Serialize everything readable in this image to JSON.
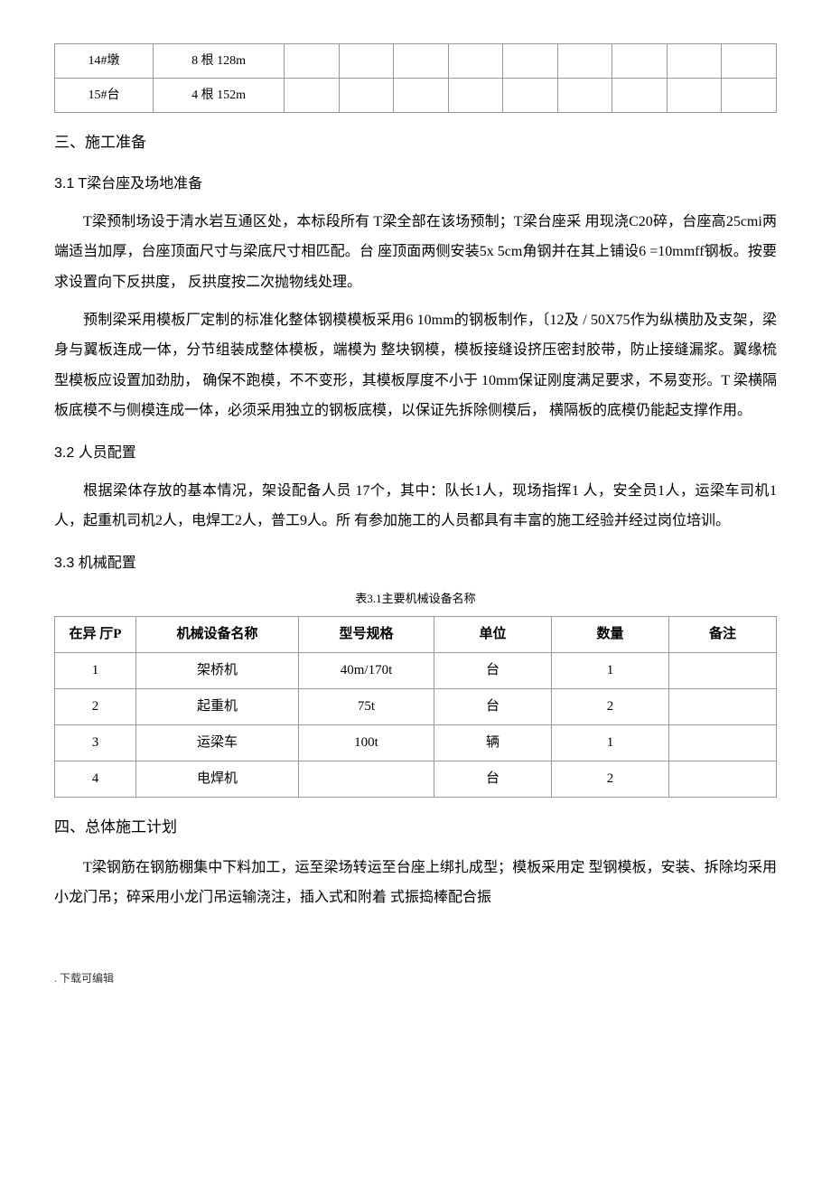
{
  "topTable": {
    "rows": [
      {
        "c1": "14#墩",
        "c2": "8 根 128m"
      },
      {
        "c1": "15#台",
        "c2": "4 根 152m"
      }
    ]
  },
  "section3": {
    "title": "三、施工准备",
    "s31": {
      "title": "3.1 T梁台座及场地准备",
      "p1": "T梁预制场设于清水岩互通区处，本标段所有 T梁全部在该场预制；T梁台座采 用现浇C20碎，台座高25cmi两端适当加厚，台座顶面尺寸与梁底尺寸相匹配。台 座顶面两侧安装5x 5cm角钢并在其上铺设6 =10mmff钢板。按要求设置向下反拱度，  反拱度按二次抛物线处理。",
      "p2": "预制梁采用模板厂定制的标准化整体钢模模板采用6    10mm的钢板制作，〔12及 / 50X75作为纵横肋及支架，梁身与翼板连成一体，分节组装成整体模板，端模为 整块钢模，模板接缝设挤压密封胶带，防止接缝漏浆。翼缘梳型模板应设置加劲肋，  确保不跑模，不不变形，其模板厚度不小于 10mm保证刚度满足要求，不易变形。T 梁横隔板底模不与侧模连成一体，必须采用独立的钢板底模，以保证先拆除侧模后，  横隔板的底模仍能起支撑作用。"
    },
    "s32": {
      "title": "3.2 人员配置",
      "p1": "根据梁体存放的基本情况，架设配备人员 17个，其中：队长1人，现场指挥1 人，安全员1人，运梁车司机1人，起重机司机2人，电焊工2人，普工9人。所 有参加施工的人员都具有丰富的施工经验并经过岗位培训。"
    },
    "s33": {
      "title": "3.3 机械配置",
      "caption": "表3.1主要机械设备名称",
      "header": {
        "seq": "在异 厅P",
        "name": "机械设备名称",
        "spec": "型号规格",
        "unit": "单位",
        "qty": "数量",
        "remark": "备注"
      },
      "rows": [
        {
          "seq": "1",
          "name": "架桥机",
          "spec": "40m/170t",
          "unit": "台",
          "qty": "1",
          "remark": ""
        },
        {
          "seq": "2",
          "name": "起重机",
          "spec": "75t",
          "unit": "台",
          "qty": "2",
          "remark": ""
        },
        {
          "seq": "3",
          "name": "运梁车",
          "spec": "100t",
          "unit": "辆",
          "qty": "1",
          "remark": ""
        },
        {
          "seq": "4",
          "name": "电焊机",
          "spec": "",
          "unit": "台",
          "qty": "2",
          "remark": ""
        }
      ]
    }
  },
  "section4": {
    "title": "四、总体施工计划",
    "p1": "T梁钢筋在钢筋棚集中下料加工，运至梁场转运至台座上绑扎成型；模板采用定 型钢模板，安装、拆除均采用小龙门吊；碎采用小龙门吊运输浇注，插入式和附着 式振捣棒配合振"
  },
  "footer": ". 下载可编辑"
}
